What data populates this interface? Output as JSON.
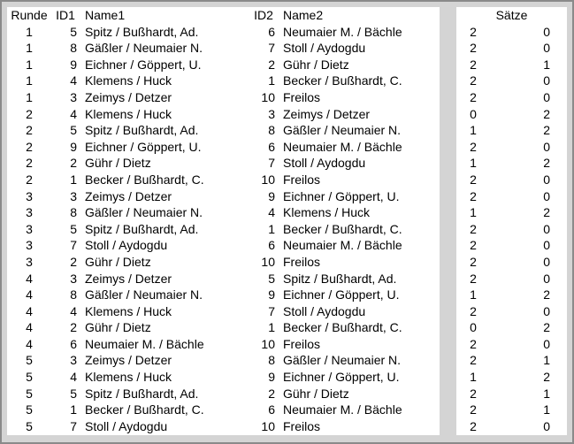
{
  "colors": {
    "background": "#d4d4d4",
    "panel": "#ffffff",
    "border": "#8a8a8a",
    "text": "#000000"
  },
  "table": {
    "headers": {
      "runde": "Runde",
      "id1": "ID1",
      "name1": "Name1",
      "id2": "ID2",
      "name2": "Name2",
      "saetze": "Sätze"
    },
    "matches": [
      {
        "round": "1",
        "id1": "5",
        "name1": "Spitz / Bußhardt, Ad.",
        "id2": "6",
        "name2": "Neumaier M. / Bächle",
        "sets1": "2",
        "sets2": "0"
      },
      {
        "round": "1",
        "id1": "8",
        "name1": "Gäßler / Neumaier N.",
        "id2": "7",
        "name2": "Stoll / Aydogdu",
        "sets1": "2",
        "sets2": "0"
      },
      {
        "round": "1",
        "id1": "9",
        "name1": "Eichner / Göppert, U.",
        "id2": "2",
        "name2": "Gühr / Dietz",
        "sets1": "2",
        "sets2": "1"
      },
      {
        "round": "1",
        "id1": "4",
        "name1": "Klemens / Huck",
        "id2": "1",
        "name2": "Becker / Bußhardt, C.",
        "sets1": "2",
        "sets2": "0"
      },
      {
        "round": "1",
        "id1": "3",
        "name1": "Zeimys / Detzer",
        "id2": "10",
        "name2": "Freilos",
        "sets1": "2",
        "sets2": "0"
      },
      {
        "round": "2",
        "id1": "4",
        "name1": "Klemens / Huck",
        "id2": "3",
        "name2": "Zeimys / Detzer",
        "sets1": "0",
        "sets2": "2"
      },
      {
        "round": "2",
        "id1": "5",
        "name1": "Spitz / Bußhardt, Ad.",
        "id2": "8",
        "name2": "Gäßler / Neumaier N.",
        "sets1": "1",
        "sets2": "2"
      },
      {
        "round": "2",
        "id1": "9",
        "name1": "Eichner / Göppert, U.",
        "id2": "6",
        "name2": "Neumaier M. / Bächle",
        "sets1": "2",
        "sets2": "0"
      },
      {
        "round": "2",
        "id1": "2",
        "name1": "Gühr / Dietz",
        "id2": "7",
        "name2": "Stoll / Aydogdu",
        "sets1": "1",
        "sets2": "2"
      },
      {
        "round": "2",
        "id1": "1",
        "name1": "Becker / Bußhardt, C.",
        "id2": "10",
        "name2": "Freilos",
        "sets1": "2",
        "sets2": "0"
      },
      {
        "round": "3",
        "id1": "3",
        "name1": "Zeimys / Detzer",
        "id2": "9",
        "name2": "Eichner / Göppert, U.",
        "sets1": "2",
        "sets2": "0"
      },
      {
        "round": "3",
        "id1": "8",
        "name1": "Gäßler / Neumaier N.",
        "id2": "4",
        "name2": "Klemens / Huck",
        "sets1": "1",
        "sets2": "2"
      },
      {
        "round": "3",
        "id1": "5",
        "name1": "Spitz / Bußhardt, Ad.",
        "id2": "1",
        "name2": "Becker / Bußhardt, C.",
        "sets1": "2",
        "sets2": "0"
      },
      {
        "round": "3",
        "id1": "7",
        "name1": "Stoll / Aydogdu",
        "id2": "6",
        "name2": "Neumaier M. / Bächle",
        "sets1": "2",
        "sets2": "0"
      },
      {
        "round": "3",
        "id1": "2",
        "name1": "Gühr / Dietz",
        "id2": "10",
        "name2": "Freilos",
        "sets1": "2",
        "sets2": "0"
      },
      {
        "round": "4",
        "id1": "3",
        "name1": "Zeimys / Detzer",
        "id2": "5",
        "name2": "Spitz / Bußhardt, Ad.",
        "sets1": "2",
        "sets2": "0"
      },
      {
        "round": "4",
        "id1": "8",
        "name1": "Gäßler / Neumaier N.",
        "id2": "9",
        "name2": "Eichner / Göppert, U.",
        "sets1": "1",
        "sets2": "2"
      },
      {
        "round": "4",
        "id1": "4",
        "name1": "Klemens / Huck",
        "id2": "7",
        "name2": "Stoll / Aydogdu",
        "sets1": "2",
        "sets2": "0"
      },
      {
        "round": "4",
        "id1": "2",
        "name1": "Gühr / Dietz",
        "id2": "1",
        "name2": "Becker / Bußhardt, C.",
        "sets1": "0",
        "sets2": "2"
      },
      {
        "round": "4",
        "id1": "6",
        "name1": "Neumaier M. / Bächle",
        "id2": "10",
        "name2": "Freilos",
        "sets1": "2",
        "sets2": "0"
      },
      {
        "round": "5",
        "id1": "3",
        "name1": "Zeimys / Detzer",
        "id2": "8",
        "name2": "Gäßler / Neumaier N.",
        "sets1": "2",
        "sets2": "1"
      },
      {
        "round": "5",
        "id1": "4",
        "name1": "Klemens / Huck",
        "id2": "9",
        "name2": "Eichner / Göppert, U.",
        "sets1": "1",
        "sets2": "2"
      },
      {
        "round": "5",
        "id1": "5",
        "name1": "Spitz / Bußhardt, Ad.",
        "id2": "2",
        "name2": "Gühr / Dietz",
        "sets1": "2",
        "sets2": "1"
      },
      {
        "round": "5",
        "id1": "1",
        "name1": "Becker / Bußhardt, C.",
        "id2": "6",
        "name2": "Neumaier M. / Bächle",
        "sets1": "2",
        "sets2": "1"
      },
      {
        "round": "5",
        "id1": "7",
        "name1": "Stoll / Aydogdu",
        "id2": "10",
        "name2": "Freilos",
        "sets1": "2",
        "sets2": "0"
      }
    ]
  }
}
